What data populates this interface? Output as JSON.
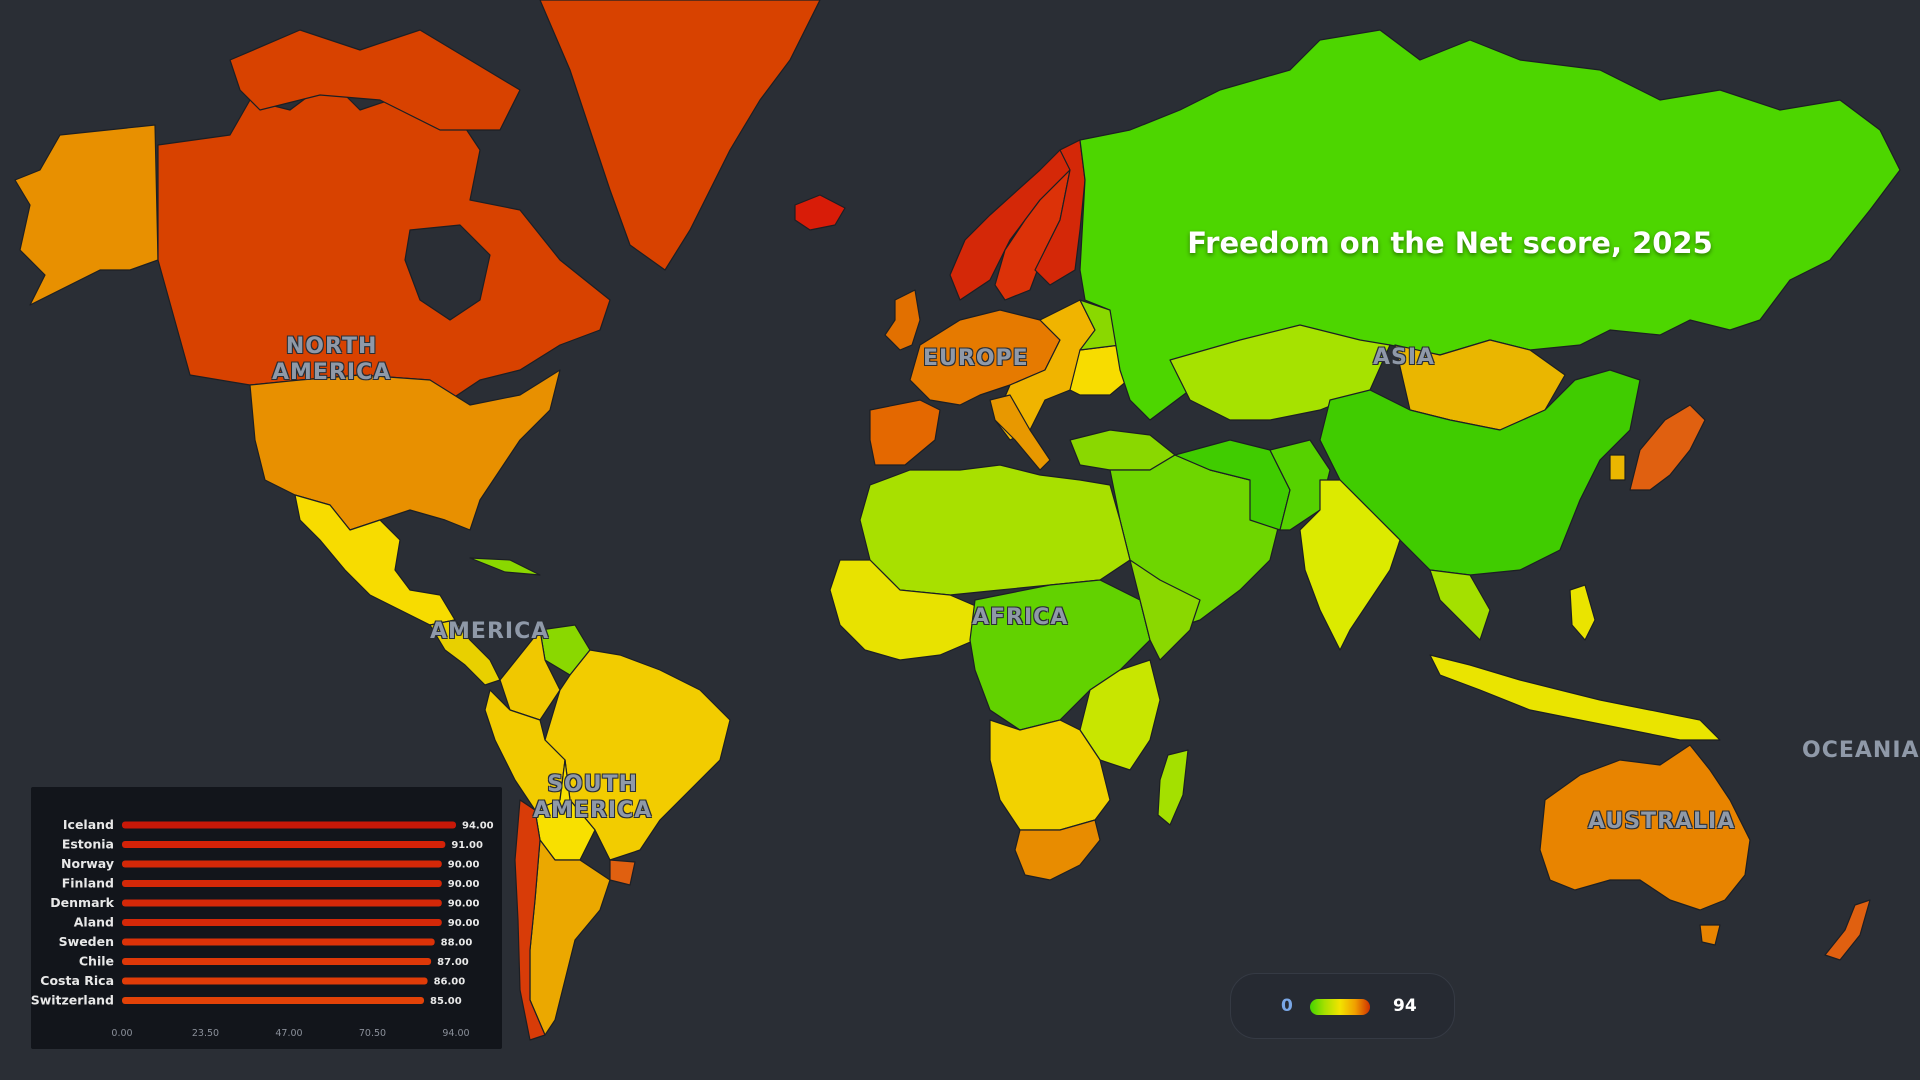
{
  "title": "Freedom on the Net score, 2025",
  "regions": {
    "north_america": "NORTH\nAMERICA",
    "america": "AMERICA",
    "south_america": "SOUTH\nAMERICA",
    "europe": "EUROPE",
    "africa": "AFRICA",
    "asia": "ASIA",
    "oceania": "OCEANIA",
    "australia": "AUSTRALIA"
  },
  "legend": {
    "min": "0",
    "max": "94"
  },
  "colors": {
    "background": "#2a2e35",
    "high": "#d03000",
    "upper_mid": "#e88a00",
    "mid": "#f2d000",
    "lower_mid": "#a8e000",
    "low": "#44d400"
  },
  "chart_data": {
    "type": "bar",
    "orientation": "horizontal",
    "categories": [
      "Iceland",
      "Estonia",
      "Norway",
      "Finland",
      "Denmark",
      "Aland",
      "Sweden",
      "Chile",
      "Costa Rica",
      "Switzerland"
    ],
    "values": [
      94,
      91,
      90,
      90,
      90,
      90,
      88,
      87,
      86,
      85
    ],
    "value_labels": [
      "94.00",
      "91.00",
      "90.00",
      "90.00",
      "90.00",
      "90.00",
      "88.00",
      "87.00",
      "86.00",
      "85.00"
    ],
    "xlim": [
      0,
      94
    ],
    "ticks": [
      "0.00",
      "23.50",
      "47.00",
      "70.50",
      "94.00"
    ],
    "bar_colors": [
      "#c81808",
      "#d42208",
      "#d42808",
      "#d42808",
      "#d42808",
      "#d42808",
      "#dc3208",
      "#de3808",
      "#e03c08",
      "#e24208"
    ]
  }
}
